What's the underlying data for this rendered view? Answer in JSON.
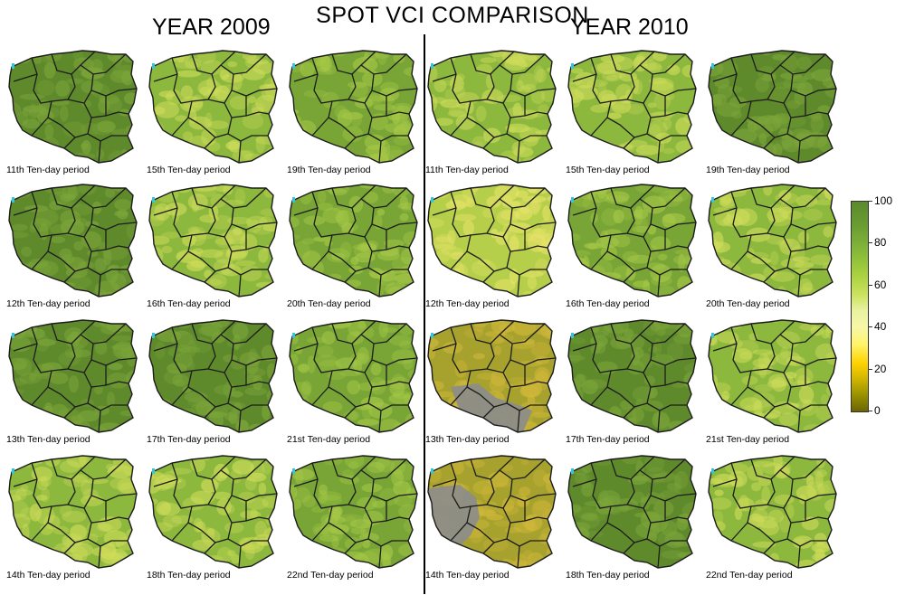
{
  "title": "SPOT VCI COMPARISON",
  "years": {
    "left": "YEAR 2009",
    "right": "YEAR 2010"
  },
  "panels": [
    {
      "caption": "11th Ten-day period",
      "year": 2009,
      "tone": "dark"
    },
    {
      "caption": "15th Ten-day period",
      "year": 2009,
      "tone": "light"
    },
    {
      "caption": "19th Ten-day period",
      "year": 2009,
      "tone": "mid"
    },
    {
      "caption": "11th Ten-day period",
      "year": 2010,
      "tone": "light"
    },
    {
      "caption": "15th Ten-day period",
      "year": 2010,
      "tone": "light"
    },
    {
      "caption": "19th Ten-day period",
      "year": 2010,
      "tone": "dark"
    },
    {
      "caption": "12th Ten-day period",
      "year": 2009,
      "tone": "dark"
    },
    {
      "caption": "16th Ten-day period",
      "year": 2009,
      "tone": "light"
    },
    {
      "caption": "20th Ten-day period",
      "year": 2009,
      "tone": "mid"
    },
    {
      "caption": "12th Ten-day period",
      "year": 2010,
      "tone": "yellow"
    },
    {
      "caption": "16th Ten-day period",
      "year": 2010,
      "tone": "mid"
    },
    {
      "caption": "20th Ten-day period",
      "year": 2010,
      "tone": "light"
    },
    {
      "caption": "13th Ten-day period",
      "year": 2009,
      "tone": "dark"
    },
    {
      "caption": "17th Ten-day period",
      "year": 2009,
      "tone": "dark"
    },
    {
      "caption": "21st Ten-day period",
      "year": 2009,
      "tone": "mid"
    },
    {
      "caption": "13th Ten-day period",
      "year": 2010,
      "tone": "dry",
      "nodata": "south"
    },
    {
      "caption": "17th Ten-day period",
      "year": 2010,
      "tone": "dark"
    },
    {
      "caption": "21st Ten-day period",
      "year": 2010,
      "tone": "light"
    },
    {
      "caption": "14th Ten-day period",
      "year": 2009,
      "tone": "light"
    },
    {
      "caption": "18th Ten-day period",
      "year": 2009,
      "tone": "light"
    },
    {
      "caption": "22nd Ten-day period",
      "year": 2009,
      "tone": "mid"
    },
    {
      "caption": "14th Ten-day period",
      "year": 2010,
      "tone": "dry",
      "nodata": "west"
    },
    {
      "caption": "18th Ten-day period",
      "year": 2010,
      "tone": "dark"
    },
    {
      "caption": "22nd Ten-day period",
      "year": 2010,
      "tone": "light"
    }
  ],
  "legend": {
    "min": 0,
    "max": 100,
    "ticks": [
      "100",
      "80",
      "60",
      "40",
      "20",
      "0"
    ],
    "colors": {
      "low": "#6b6500",
      "mid": "#fff46a",
      "high": "#5a8a2e"
    }
  },
  "tones": {
    "dark": {
      "fill": "#5f8a2c",
      "spot": "#7da63a"
    },
    "mid": {
      "fill": "#78a536",
      "spot": "#a6c847"
    },
    "light": {
      "fill": "#8cb83e",
      "spot": "#cfdc5a"
    },
    "yellow": {
      "fill": "#b6cf4a",
      "spot": "#e8e46a"
    },
    "dry": {
      "fill": "#a7a22e",
      "spot": "#d1b83a"
    }
  }
}
